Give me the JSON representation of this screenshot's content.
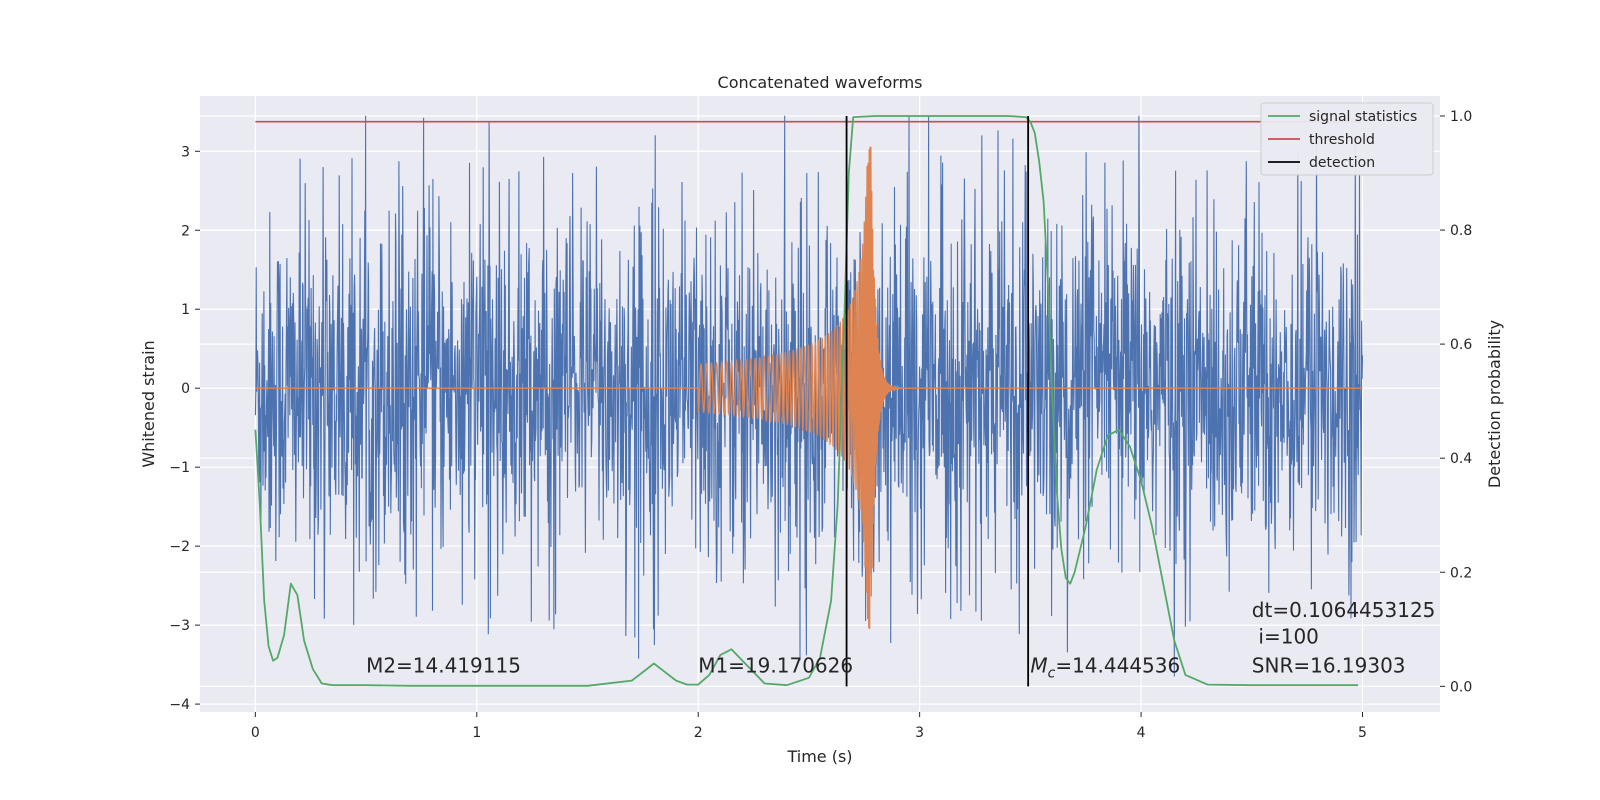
{
  "chart_data": {
    "type": "line",
    "title": "Concatenated waveforms",
    "xlabel": "Time (s)",
    "ylabel_left": "Whitened strain",
    "ylabel_right": "Detection probability",
    "xlim": [
      -0.25,
      5.35
    ],
    "ylim_left": [
      -4.1,
      3.7
    ],
    "ylim_right": [
      -0.045,
      1.035
    ],
    "x_ticks": [
      0,
      1,
      2,
      3,
      4,
      5
    ],
    "y_ticks_left": [
      -4,
      -3,
      -2,
      -1,
      0,
      1,
      2,
      3
    ],
    "y_ticks_right": [
      0.0,
      0.2,
      0.4,
      0.6,
      0.8,
      1.0
    ],
    "x_tick_labels": [
      "0",
      "1",
      "2",
      "3",
      "4",
      "5"
    ],
    "y_tick_labels_left": [
      "−4",
      "−3",
      "−2",
      "−1",
      "0",
      "1",
      "2",
      "3"
    ],
    "y_tick_labels_right": [
      "0.0",
      "0.2",
      "0.4",
      "0.6",
      "0.8",
      "1.0"
    ],
    "grid": true,
    "legend_position": "top-right",
    "colors": {
      "background": "#eaeaf2",
      "grid": "#ffffff",
      "noise": "#4c72b0",
      "template": "#dd8452",
      "signal_statistics": "#55a868",
      "threshold": "#c44e52",
      "detection": "#000000"
    },
    "series": [
      {
        "name": "",
        "axis": "left",
        "kind": "noisy whitened strain",
        "x_range": [
          0,
          5
        ],
        "envelope": {
          "typical_peak": 2.0,
          "max": 3.45,
          "min": -3.65
        }
      },
      {
        "name": "",
        "axis": "left",
        "kind": "chirp waveform",
        "x_range": [
          0,
          5
        ],
        "chirp_start": 2.0,
        "merger": 2.78,
        "ringdown_end": 2.95,
        "peak_positive": 3.05,
        "peak_negative": -3.05
      },
      {
        "name": "signal statistics",
        "axis": "right",
        "x": [
          0.0,
          0.02,
          0.04,
          0.06,
          0.08,
          0.1,
          0.13,
          0.16,
          0.19,
          0.22,
          0.26,
          0.3,
          0.35,
          0.5,
          0.7,
          1.0,
          1.5,
          1.7,
          1.75,
          1.8,
          1.85,
          1.9,
          1.95,
          2.0,
          2.05,
          2.1,
          2.15,
          2.2,
          2.3,
          2.4,
          2.5,
          2.55,
          2.6,
          2.63,
          2.66,
          2.68,
          2.7,
          2.8,
          2.9,
          3.0,
          3.2,
          3.4,
          3.48,
          3.5,
          3.52,
          3.54,
          3.56,
          3.58,
          3.6,
          3.62,
          3.64,
          3.66,
          3.68,
          3.7,
          3.75,
          3.8,
          3.85,
          3.9,
          3.95,
          4.0,
          4.05,
          4.1,
          4.15,
          4.2,
          4.3,
          4.5,
          4.7,
          4.9,
          4.98
        ],
        "y": [
          0.45,
          0.32,
          0.15,
          0.07,
          0.045,
          0.05,
          0.09,
          0.18,
          0.16,
          0.08,
          0.03,
          0.005,
          0.002,
          0.002,
          0.001,
          0.001,
          0.001,
          0.01,
          0.025,
          0.04,
          0.025,
          0.01,
          0.003,
          0.003,
          0.02,
          0.055,
          0.065,
          0.045,
          0.005,
          0.002,
          0.015,
          0.05,
          0.15,
          0.32,
          0.65,
          0.9,
          0.998,
          1.0,
          1.0,
          1.0,
          1.0,
          1.0,
          0.998,
          0.99,
          0.97,
          0.92,
          0.85,
          0.7,
          0.5,
          0.34,
          0.24,
          0.19,
          0.18,
          0.2,
          0.28,
          0.38,
          0.44,
          0.45,
          0.42,
          0.36,
          0.28,
          0.18,
          0.08,
          0.02,
          0.003,
          0.002,
          0.002,
          0.002,
          0.002
        ]
      },
      {
        "name": "threshold",
        "axis": "right",
        "x": [
          0,
          5
        ],
        "y": [
          0.99,
          0.99
        ]
      },
      {
        "name": "detection",
        "axis": "right",
        "vertical_lines_at": [
          2.67,
          3.49
        ],
        "y_span": [
          0,
          1.0
        ]
      }
    ],
    "annotations": [
      {
        "text": "M2=14.419115",
        "x": 0.5,
        "y": -3.6,
        "axis": "left"
      },
      {
        "text": "M1=19.170626",
        "x": 2.0,
        "y": -3.6,
        "axis": "left"
      },
      {
        "text": "Mc=14.444536",
        "x": 3.5,
        "y": -3.6,
        "axis": "left",
        "math_symbol": "M",
        "math_subscript": "c",
        "value_text": "=14.444536"
      },
      {
        "text": "dt=0.1064453125",
        "x": 4.5,
        "y": -2.9,
        "axis": "left"
      },
      {
        "text": "i=100",
        "x": 4.53,
        "y": -3.23,
        "axis": "left"
      },
      {
        "text": "SNR=16.19303",
        "x": 4.5,
        "y": -3.6,
        "axis": "left"
      }
    ]
  }
}
